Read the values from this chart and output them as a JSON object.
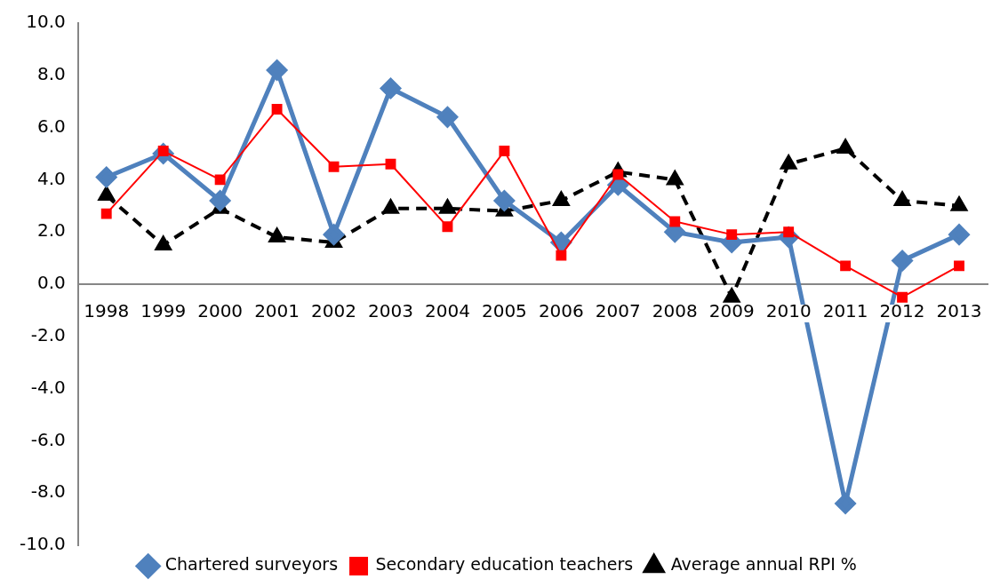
{
  "chart_data": {
    "type": "line",
    "categories": [
      "1998",
      "1999",
      "2000",
      "2001",
      "2002",
      "2003",
      "2004",
      "2005",
      "2006",
      "2007",
      "2008",
      "2009",
      "2010",
      "2011",
      "2012",
      "2013"
    ],
    "ylim": [
      -10,
      10
    ],
    "yticks": [
      {
        "value": -10,
        "label": "-10.0"
      },
      {
        "value": -8,
        "label": "-8.0"
      },
      {
        "value": -6,
        "label": "-6.0"
      },
      {
        "value": -4,
        "label": "-4.0"
      },
      {
        "value": -2,
        "label": "-2.0"
      },
      {
        "value": 0,
        "label": "0.0"
      },
      {
        "value": 2,
        "label": "2.0"
      },
      {
        "value": 4,
        "label": "4.0"
      },
      {
        "value": 6,
        "label": "6.0"
      },
      {
        "value": 8,
        "label": "8.0"
      },
      {
        "value": 10,
        "label": "10.0"
      }
    ],
    "grid": false,
    "legend": "bottom",
    "series": [
      {
        "name": "Chartered surveyors",
        "color": "#4f81bd",
        "marker": "diamond",
        "line_style": "solid",
        "values": [
          4.1,
          5.0,
          3.2,
          8.2,
          1.9,
          7.5,
          6.4,
          3.2,
          1.6,
          3.8,
          2.0,
          1.6,
          1.8,
          -8.4,
          0.9,
          1.9
        ]
      },
      {
        "name": "Secondary education teachers",
        "color": "#ff0000",
        "marker": "square",
        "line_style": "solid",
        "values": [
          2.7,
          5.1,
          4.0,
          6.7,
          4.5,
          4.6,
          2.2,
          5.1,
          1.1,
          4.2,
          2.4,
          1.9,
          2.0,
          0.7,
          -0.5,
          0.7
        ]
      },
      {
        "name": "Average annual RPI %",
        "color": "#000000",
        "marker": "triangle",
        "line_style": "dashed",
        "values": [
          3.4,
          1.5,
          2.9,
          1.8,
          1.6,
          2.9,
          2.9,
          2.8,
          3.2,
          4.3,
          4.0,
          -0.5,
          4.6,
          5.2,
          3.2,
          3.0
        ]
      }
    ]
  }
}
